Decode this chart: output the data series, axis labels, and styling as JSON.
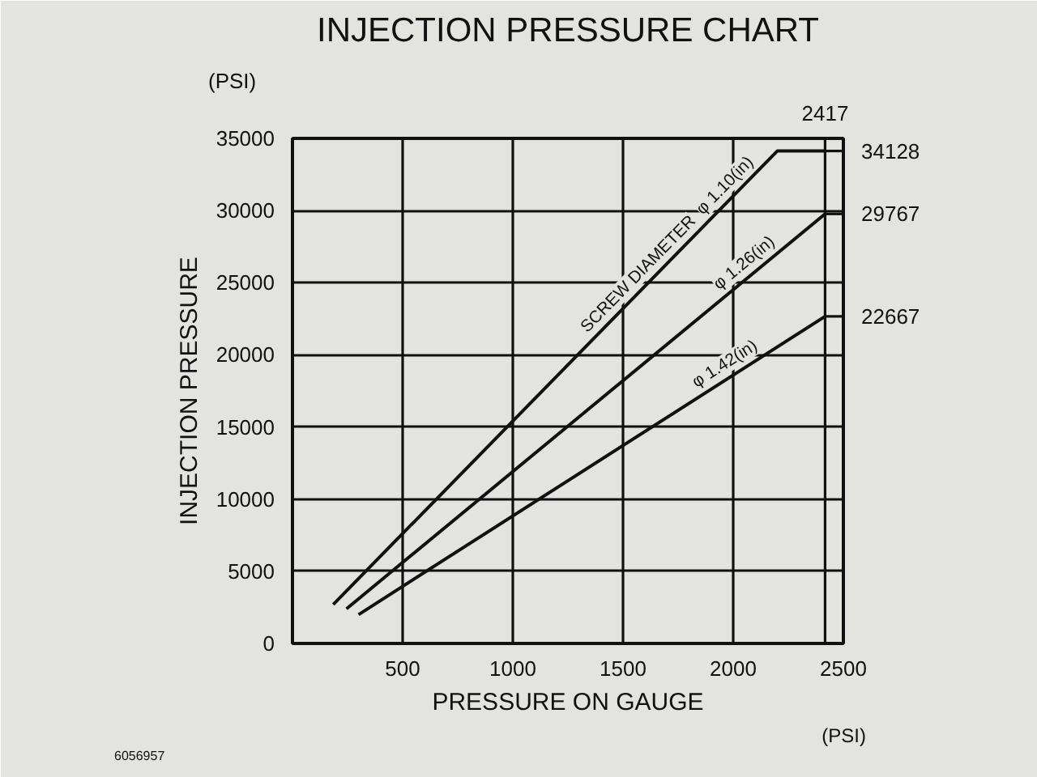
{
  "chart_data": {
    "type": "line",
    "title": "INJECTION PRESSURE CHART",
    "xlabel": "PRESSURE ON GAUGE",
    "ylabel": "INJECTION PRESSURE",
    "xlim": [
      0,
      2500
    ],
    "ylim": [
      0,
      35000
    ],
    "xticks": [
      500,
      1000,
      1500,
      2000,
      2500
    ],
    "yticks": [
      0,
      5000,
      10000,
      15000,
      20000,
      25000,
      30000,
      35000
    ],
    "grid": true,
    "marker": "none",
    "line_style": "solid",
    "series": [
      {
        "name": "φ 1.10(in)",
        "color": "#111111",
        "x": [
          185,
          2200,
          2417
        ],
        "values": [
          2700,
          34128,
          34128
        ],
        "value_labels": [
          null,
          null,
          "34128"
        ]
      },
      {
        "name": "φ 1.26(in)",
        "color": "#111111",
        "x": [
          245,
          2417
        ],
        "values": [
          2400,
          29767
        ],
        "value_labels": [
          null,
          "29767"
        ]
      },
      {
        "name": "φ 1.42(in)",
        "color": "#111111",
        "x": [
          300,
          2417
        ],
        "values": [
          2000,
          22667
        ],
        "value_labels": [
          null,
          "22667"
        ]
      }
    ],
    "ref_lines": [
      {
        "axis": "x",
        "value": 2417,
        "label": "2417"
      }
    ],
    "annotations": [
      "SCREW DIAMETER",
      "(PSI)",
      "(PSI)",
      "6056957"
    ]
  }
}
